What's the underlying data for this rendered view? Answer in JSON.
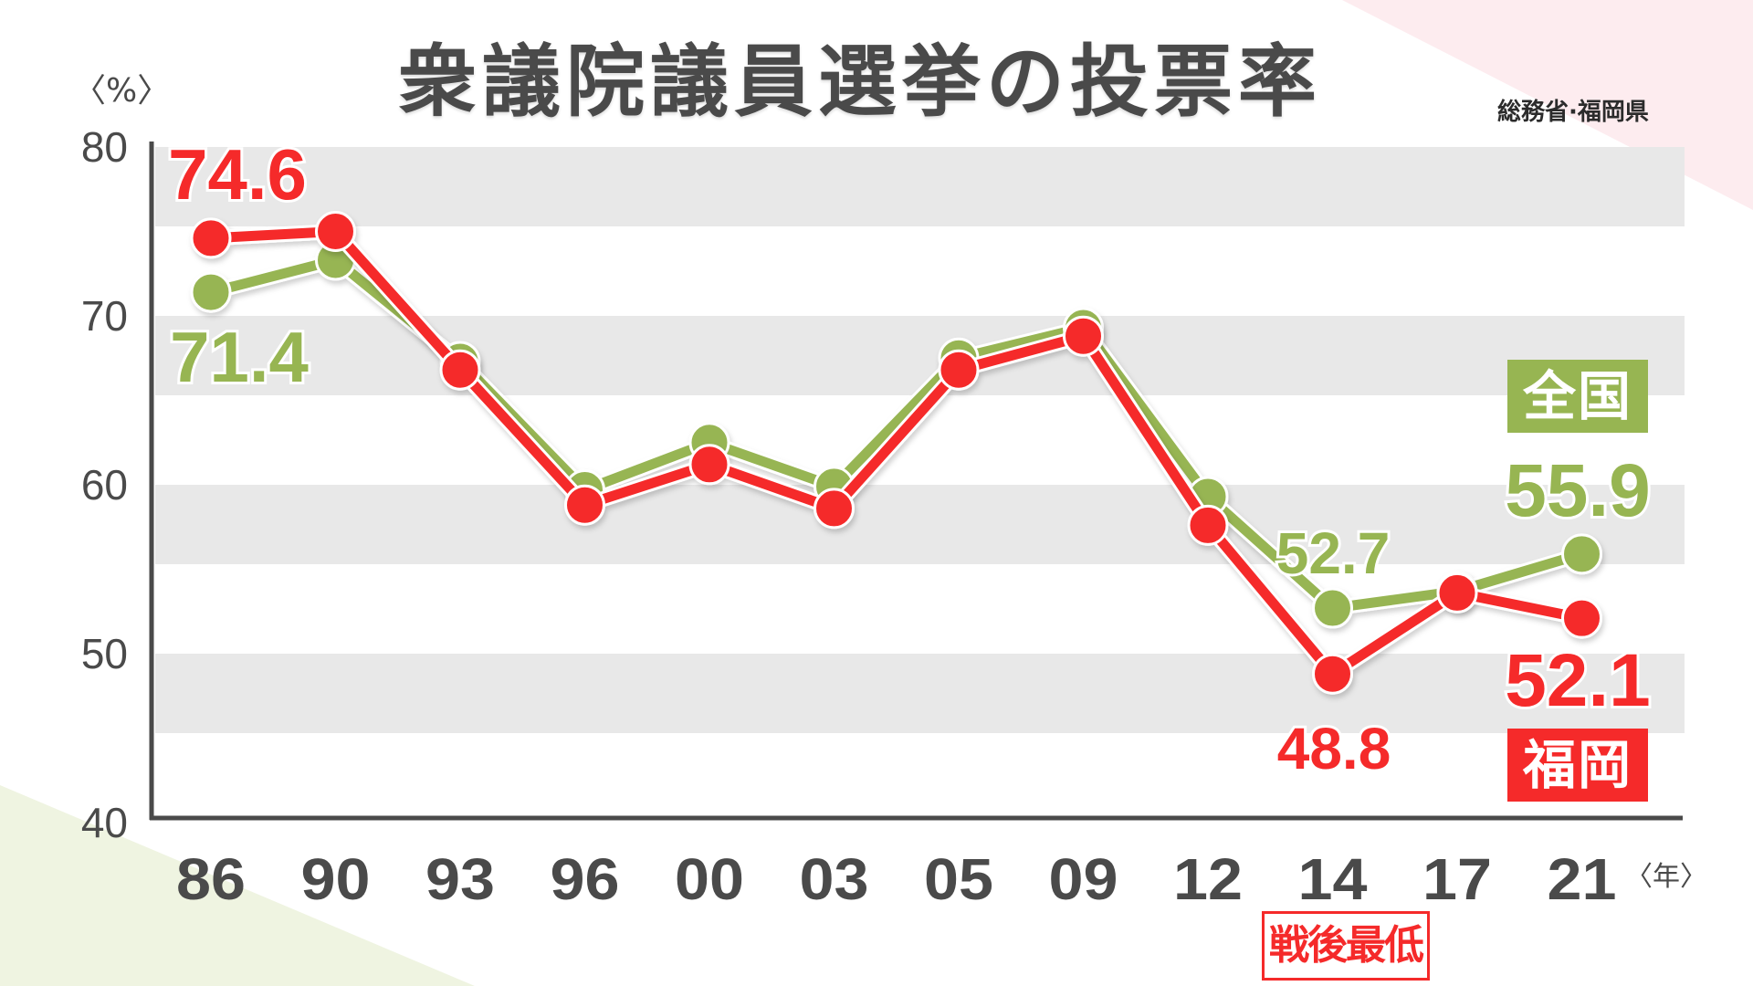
{
  "header": {
    "title": "衆議院議員選挙の投票率",
    "source": "総務省·福岡県",
    "y_unit": "〈%〉",
    "x_unit": "〈年〉"
  },
  "legend": {
    "national": "全国",
    "fukuoka": "福岡"
  },
  "annotation": {
    "record_low": "戦後最低"
  },
  "colors": {
    "national": "#97b552",
    "fukuoka": "#f52a2a",
    "axis": "#4a4a4a",
    "band": "#e8e8e8",
    "text": "#4a4a4a"
  },
  "callouts": [
    {
      "series": "fukuoka",
      "label": "74.6",
      "index": 0
    },
    {
      "series": "national",
      "label": "71.4",
      "index": 0
    },
    {
      "series": "national",
      "label": "52.7",
      "index": 9
    },
    {
      "series": "fukuoka",
      "label": "48.8",
      "index": 9
    },
    {
      "series": "national",
      "label": "55.9",
      "index": 11
    },
    {
      "series": "fukuoka",
      "label": "52.1",
      "index": 11
    }
  ],
  "chart_data": {
    "type": "line",
    "title": "衆議院議員選挙の投票率",
    "xlabel": "〈年〉",
    "ylabel": "〈%〉",
    "categories": [
      "86",
      "90",
      "93",
      "96",
      "00",
      "03",
      "05",
      "09",
      "12",
      "14",
      "17",
      "21"
    ],
    "series": [
      {
        "name": "全国",
        "values": [
          71.4,
          73.3,
          67.3,
          59.7,
          62.5,
          59.9,
          67.5,
          69.3,
          59.3,
          52.7,
          53.7,
          55.9
        ]
      },
      {
        "name": "福岡",
        "values": [
          74.6,
          75.0,
          66.8,
          58.8,
          61.2,
          58.6,
          66.8,
          68.8,
          57.6,
          48.8,
          53.6,
          52.1
        ]
      }
    ],
    "ylim": [
      40,
      80
    ],
    "yticks": [
      40,
      50,
      60,
      70,
      80
    ],
    "grid": "alternating horizontal bands",
    "legend_position": "right, inline labels",
    "annotations": [
      "戦後最低 (14)",
      "総務省·福岡県"
    ]
  }
}
